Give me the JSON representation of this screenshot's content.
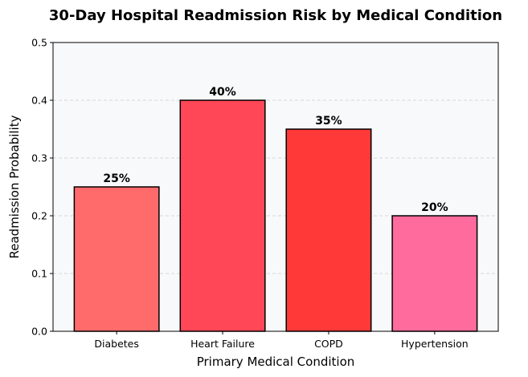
{
  "chart_data": {
    "type": "bar",
    "title": "30-Day Hospital Readmission Risk by Medical Condition",
    "xlabel": "Primary Medical Condition",
    "ylabel": "Readmission Probability",
    "categories": [
      "Diabetes",
      "Heart Failure",
      "COPD",
      "Hypertension"
    ],
    "values": [
      0.25,
      0.4,
      0.35,
      0.2
    ],
    "data_labels": [
      "25%",
      "40%",
      "35%",
      "20%"
    ],
    "colors": [
      "#ff6b6b",
      "#ff4757",
      "#ff3838",
      "#ff6b9d"
    ],
    "ylim": [
      0,
      0.5
    ],
    "yticks": [
      0.0,
      0.1,
      0.2,
      0.3,
      0.4,
      0.5
    ],
    "ytick_labels": [
      "0.0",
      "0.1",
      "0.2",
      "0.3",
      "0.4",
      "0.5"
    ],
    "grid": "y-dashed",
    "plot_background": "#f8f9fa",
    "bar_edge_color": "#000000"
  }
}
